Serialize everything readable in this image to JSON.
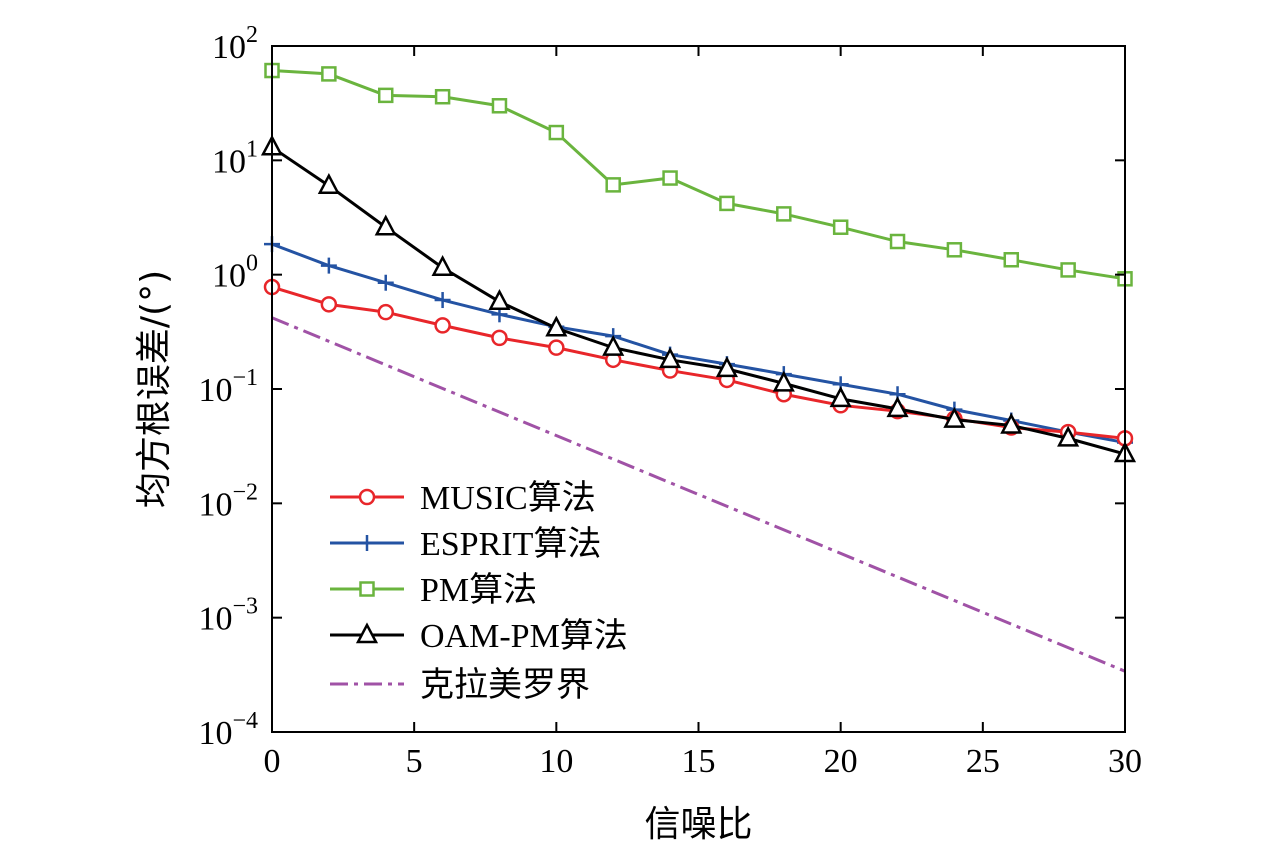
{
  "chart_data": {
    "type": "line",
    "title": "",
    "xlabel": "信噪比",
    "ylabel": "均方根误差/(°)",
    "xlim": [
      0,
      30
    ],
    "ylim": [
      0.0001,
      100
    ],
    "yscale": "log",
    "grid": false,
    "legend_position": "lower-left",
    "x_ticks": [
      0,
      5,
      10,
      15,
      20,
      25,
      30
    ],
    "y_ticks": [
      {
        "base": "10",
        "exp": "2"
      },
      {
        "base": "10",
        "exp": "1"
      },
      {
        "base": "10",
        "exp": "0"
      },
      {
        "base": "10",
        "exp": "−1"
      },
      {
        "base": "10",
        "exp": "−2"
      },
      {
        "base": "10",
        "exp": "−3"
      },
      {
        "base": "10",
        "exp": "−4"
      }
    ],
    "series": [
      {
        "name": "MUSIC算法",
        "color": "#e8262a",
        "marker": "circle",
        "dash": "solid",
        "x": [
          0,
          2,
          4,
          6,
          8,
          10,
          12,
          14,
          16,
          18,
          20,
          22,
          24,
          26,
          28,
          30
        ],
        "values": [
          0.78,
          0.55,
          0.47,
          0.36,
          0.28,
          0.23,
          0.18,
          0.145,
          0.12,
          0.09,
          0.072,
          0.064,
          0.055,
          0.046,
          0.042,
          0.037
        ]
      },
      {
        "name": "ESPRIT算法",
        "color": "#2453a3",
        "marker": "plus",
        "dash": "solid",
        "x": [
          0,
          2,
          4,
          6,
          8,
          10,
          12,
          14,
          16,
          18,
          20,
          22,
          24,
          26,
          28,
          30
        ],
        "values": [
          1.85,
          1.2,
          0.85,
          0.6,
          0.45,
          0.35,
          0.29,
          0.2,
          0.165,
          0.135,
          0.11,
          0.09,
          0.066,
          0.053,
          0.042,
          0.034
        ]
      },
      {
        "name": "PM算法",
        "color": "#6ab43e",
        "marker": "square",
        "dash": "solid",
        "x": [
          0,
          2,
          4,
          6,
          8,
          10,
          12,
          14,
          16,
          18,
          20,
          22,
          24,
          26,
          28,
          30
        ],
        "values": [
          61,
          57,
          37,
          36,
          30,
          17.5,
          6.1,
          7.0,
          4.2,
          3.4,
          2.6,
          1.95,
          1.65,
          1.35,
          1.1,
          0.92
        ]
      },
      {
        "name": "OAM-PM算法",
        "color": "#000000",
        "marker": "triangle",
        "dash": "solid",
        "x": [
          0,
          2,
          4,
          6,
          8,
          10,
          12,
          14,
          16,
          18,
          20,
          22,
          24,
          26,
          28,
          30
        ],
        "values": [
          13,
          6.0,
          2.6,
          1.15,
          0.58,
          0.34,
          0.23,
          0.18,
          0.15,
          0.112,
          0.082,
          0.067,
          0.054,
          0.048,
          0.037,
          0.027
        ]
      },
      {
        "name": "克拉美罗界",
        "color": "#a052a6",
        "marker": "none",
        "dash": "dashdot",
        "x": [
          0,
          30
        ],
        "values": [
          0.42,
          0.00034
        ]
      }
    ]
  }
}
